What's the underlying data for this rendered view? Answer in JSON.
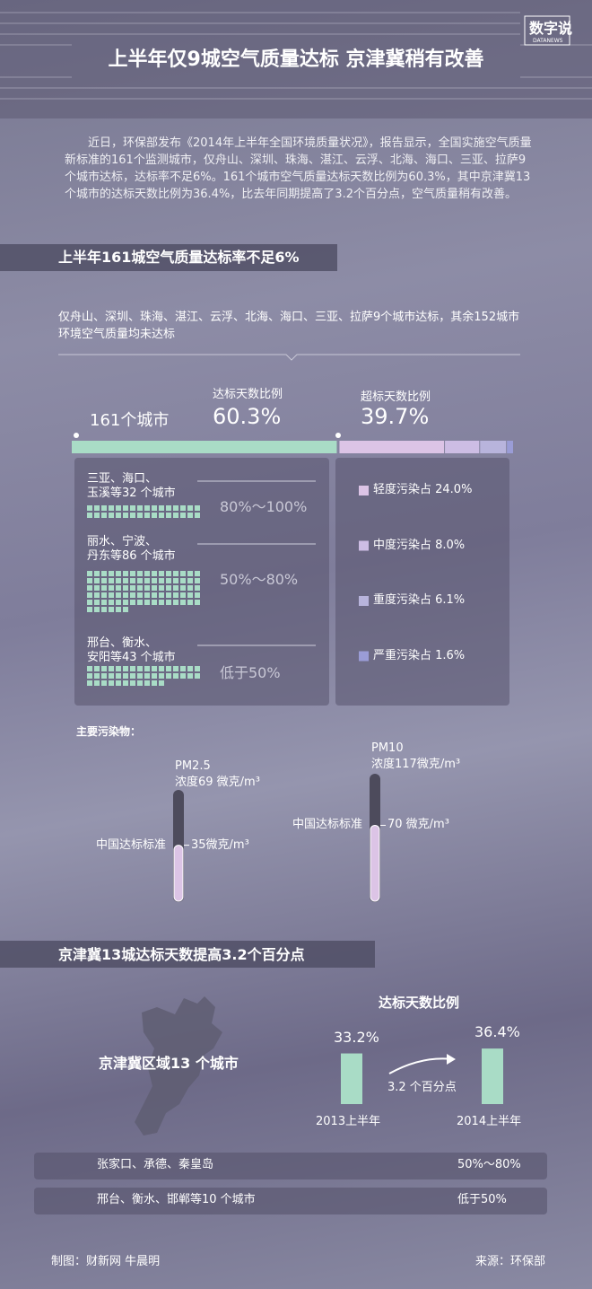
{
  "brand": {
    "name": "数字说",
    "sub": "DATANEWS"
  },
  "header": {
    "title": "上半年仅9城空气质量达标 京津冀稍有改善"
  },
  "intro": "近日，环保部发布《2014年上半年全国环境质量状况》，报告显示，全国实施空气质量新标准的161个监测城市，仅舟山、深圳、珠海、湛江、云浮、北海、海口、三亚、拉萨9个城市达标，达标率不足6%。161个城市空气质量达标天数比例为60.3%，其中京津冀13个城市的达标天数比例为36.4%，比去年同期提高了3.2个百分点，空气质量稍有改善。",
  "section1": {
    "title": "上半年161城空气质量达标率不足6%",
    "note": "仅舟山、深圳、珠海、湛江、云浮、北海、海口、三亚、拉萨9个城市达标，其余152城市环境空气质量均未达标",
    "cities_label": "161个城市",
    "compliant": {
      "label": "达标天数比例",
      "value": 60.3,
      "value_label": "60.3%",
      "color": "#a9dcc6"
    },
    "exceeding": {
      "label": "超标天数比例",
      "value": 39.7,
      "value_label": "39.7%"
    },
    "groups": [
      {
        "name": [
          "三亚、海口、",
          "玉溪等32 个城市"
        ],
        "count": 32,
        "range": "80%～100%"
      },
      {
        "name": [
          "丽水、宁波、",
          "丹东等86 个城市"
        ],
        "count": 86,
        "range": "50%～80%"
      },
      {
        "name": [
          "邢台、衡水、",
          "安阳等43 个城市"
        ],
        "count": 43,
        "range": "低于50%"
      }
    ],
    "square_color": "#a9dcc6",
    "pollution": [
      {
        "label": "轻度污染占 24.0%",
        "value": 24.0,
        "color": "#dcc4e6"
      },
      {
        "label": "中度污染占 8.0%",
        "value": 8.0,
        "color": "#cdbde4"
      },
      {
        "label": "重度污染占 6.1%",
        "value": 6.1,
        "color": "#b8b4dc"
      },
      {
        "label": "严重污染占 1.6%",
        "value": 1.6,
        "color": "#9a9cd6"
      }
    ]
  },
  "pollutants": {
    "title": "主要污染物：",
    "standard_label": "中国达标标准",
    "items": [
      {
        "name": "PM2.5",
        "concentration_label": "浓度69 微克/m³",
        "concentration": 69,
        "standard_text": "35微克/m³",
        "standard": 35
      },
      {
        "name": "PM10",
        "concentration_label": "浓度117微克/m³",
        "concentration": 117,
        "standard_text": "70 微克/m³",
        "standard": 70
      }
    ]
  },
  "section2": {
    "title": "京津冀13城达标天数提高3.2个百分点",
    "region_label": "京津冀区域13 个城市",
    "chart_title": "达标天数比例",
    "bars": [
      {
        "category": "2013上半年",
        "value": 33.2,
        "value_label": "33.2%"
      },
      {
        "category": "2014上半年",
        "value": 36.4,
        "value_label": "36.4%"
      }
    ],
    "bar_color": "#a9dcc6",
    "change_label": "3.2 个百分点",
    "rows": [
      {
        "cities": "张家口、承德、秦皇岛",
        "range": "50%～80%"
      },
      {
        "cities": "邢台、衡水、邯郸等10 个城市",
        "range": "低于50%"
      }
    ]
  },
  "footer": {
    "credit": "制图：财新网 牛晨明",
    "source": "来源：环保部"
  }
}
